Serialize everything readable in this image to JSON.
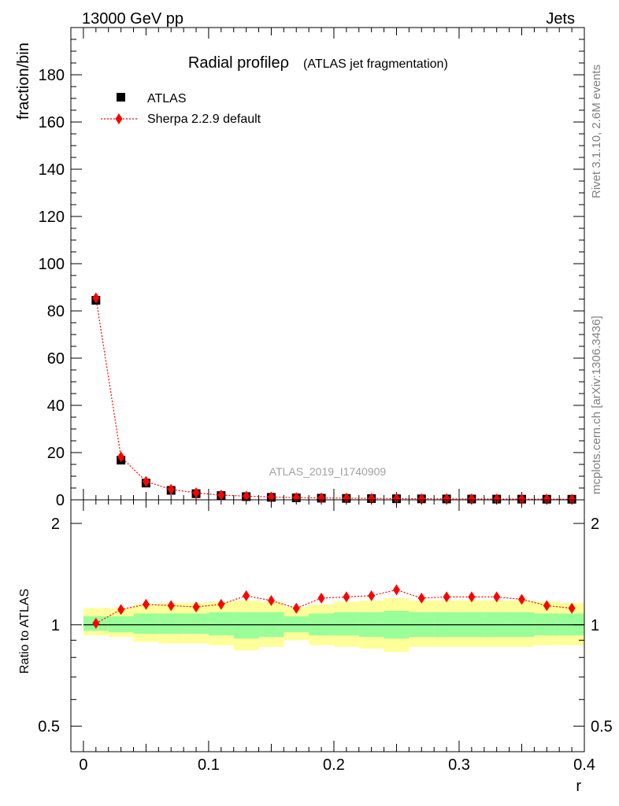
{
  "header": {
    "left": "13000 GeV pp",
    "right": "Jets"
  },
  "side": {
    "top": "Rivet 3.1.10,  2.6M events",
    "bottom": "mcplots.cern.ch [arXiv:1306.3436]"
  },
  "chart_data": [
    {
      "type": "scatter",
      "title": "Radial profileρ",
      "subtitle": "(ATLAS jet fragmentation)",
      "ylabel": "fraction/bin",
      "watermark": "ATLAS_2019_I1740909",
      "xlim": [
        -0.01,
        0.4
      ],
      "ylim": [
        0,
        200
      ],
      "yticks": [
        0,
        20,
        40,
        60,
        80,
        100,
        120,
        140,
        160,
        180
      ],
      "series": [
        {
          "name": "ATLAS",
          "marker": "square",
          "color": "#000000",
          "x": [
            0.01,
            0.03,
            0.05,
            0.07,
            0.09,
            0.11,
            0.13,
            0.15,
            0.17,
            0.19,
            0.21,
            0.23,
            0.25,
            0.27,
            0.29,
            0.31,
            0.33,
            0.35,
            0.37,
            0.39
          ],
          "y": [
            84.5,
            16.8,
            7.1,
            4.0,
            2.6,
            1.8,
            1.35,
            1.05,
            0.85,
            0.7,
            0.6,
            0.52,
            0.45,
            0.4,
            0.36,
            0.33,
            0.3,
            0.28,
            0.26,
            0.24
          ]
        },
        {
          "name": "Sherpa 2.2.9 default",
          "marker": "diamond",
          "color": "#ff0000",
          "x": [
            0.01,
            0.03,
            0.05,
            0.07,
            0.09,
            0.11,
            0.13,
            0.15,
            0.17,
            0.19,
            0.21,
            0.23,
            0.25,
            0.27,
            0.29,
            0.31,
            0.33,
            0.35,
            0.37,
            0.39
          ],
          "y": [
            85.5,
            18.2,
            7.8,
            4.4,
            2.95,
            2.0,
            1.55,
            1.2,
            0.95,
            0.8,
            0.7,
            0.6,
            0.53,
            0.46,
            0.42,
            0.38,
            0.35,
            0.32,
            0.3,
            0.27
          ]
        }
      ]
    },
    {
      "type": "scatter",
      "ylabel": "Ratio to ATLAS",
      "xlabel": "r",
      "scale": "log",
      "xlim": [
        -0.01,
        0.4
      ],
      "ylim": [
        0.42,
        2.35
      ],
      "yticks": [
        0.5,
        1,
        2
      ],
      "xticks": [
        0,
        0.1,
        0.2,
        0.3,
        0.4
      ],
      "reference": 1,
      "bands": {
        "edges": [
          0.0,
          0.02,
          0.04,
          0.06,
          0.08,
          0.1,
          0.12,
          0.14,
          0.16,
          0.18,
          0.2,
          0.22,
          0.24,
          0.26,
          0.28,
          0.3,
          0.32,
          0.34,
          0.36,
          0.38,
          0.4
        ],
        "outer": {
          "color": "#ffff99",
          "low": [
            0.93,
            0.92,
            0.89,
            0.88,
            0.88,
            0.87,
            0.84,
            0.86,
            0.9,
            0.87,
            0.86,
            0.85,
            0.83,
            0.86,
            0.86,
            0.86,
            0.86,
            0.86,
            0.87,
            0.87
          ],
          "high": [
            1.12,
            1.12,
            1.15,
            1.16,
            1.16,
            1.17,
            1.18,
            1.17,
            1.13,
            1.15,
            1.17,
            1.18,
            1.2,
            1.18,
            1.18,
            1.18,
            1.18,
            1.18,
            1.17,
            1.16
          ]
        },
        "inner": {
          "color": "#99ff99",
          "low": [
            0.96,
            0.95,
            0.94,
            0.94,
            0.94,
            0.93,
            0.91,
            0.92,
            0.95,
            0.93,
            0.93,
            0.92,
            0.91,
            0.92,
            0.92,
            0.92,
            0.92,
            0.92,
            0.93,
            0.93
          ],
          "high": [
            1.06,
            1.06,
            1.08,
            1.08,
            1.08,
            1.09,
            1.09,
            1.09,
            1.06,
            1.08,
            1.09,
            1.09,
            1.1,
            1.09,
            1.09,
            1.09,
            1.09,
            1.09,
            1.08,
            1.08
          ]
        }
      },
      "series": [
        {
          "name": "Sherpa 2.2.9 default",
          "marker": "diamond",
          "color": "#ff0000",
          "x": [
            0.01,
            0.03,
            0.05,
            0.07,
            0.09,
            0.11,
            0.13,
            0.15,
            0.17,
            0.19,
            0.21,
            0.23,
            0.25,
            0.27,
            0.29,
            0.31,
            0.33,
            0.35,
            0.37,
            0.39
          ],
          "y": [
            1.01,
            1.11,
            1.15,
            1.14,
            1.13,
            1.15,
            1.22,
            1.18,
            1.12,
            1.2,
            1.21,
            1.22,
            1.27,
            1.2,
            1.21,
            1.21,
            1.21,
            1.19,
            1.14,
            1.12
          ]
        }
      ]
    }
  ]
}
